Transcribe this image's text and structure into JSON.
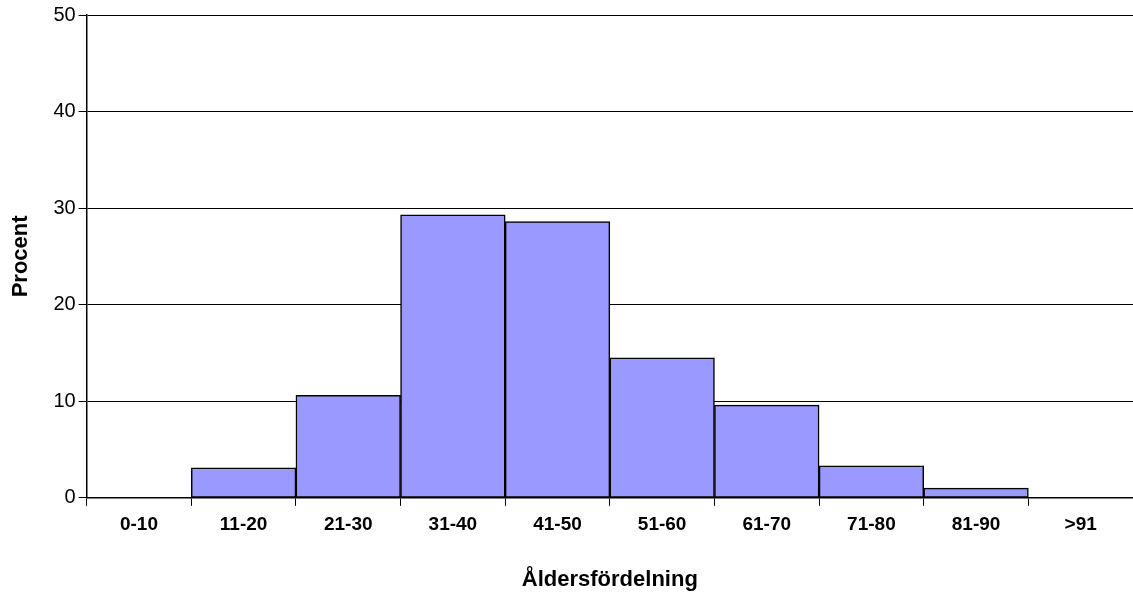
{
  "chart_data": {
    "type": "bar",
    "xlabel": "Åldersfördelning",
    "ylabel": "Procent",
    "categories": [
      "0-10",
      "11-20",
      "21-30",
      "31-40",
      "41-50",
      "51-60",
      "61-70",
      "71-80",
      "81-90",
      ">91"
    ],
    "values": [
      0,
      3.1,
      10.6,
      29.3,
      28.6,
      14.5,
      9.6,
      3.3,
      1.0,
      0
    ],
    "color": "#9999ff",
    "ylim": [
      0,
      50
    ],
    "yticks": [
      0,
      10,
      20,
      30,
      40,
      50
    ],
    "grid": "y",
    "legend": false
  }
}
